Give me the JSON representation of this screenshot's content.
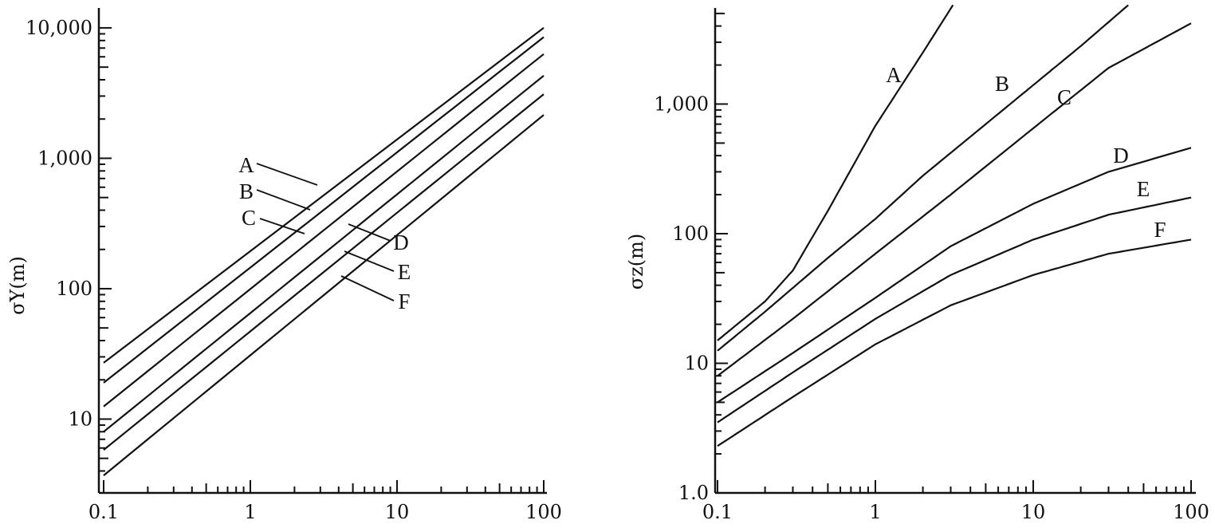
{
  "chart_data": [
    {
      "type": "line",
      "title": "",
      "xlabel": "",
      "ylabel": "σY(m)",
      "x_scale": "log",
      "y_scale": "log",
      "xlim": [
        0.1,
        100
      ],
      "ylim": [
        3.5,
        12000
      ],
      "x_ticks": [
        0.1,
        1,
        10,
        100
      ],
      "x_tick_labels": [
        "0.1",
        "1",
        "10",
        "100"
      ],
      "y_ticks": [
        10,
        100,
        1000,
        10000
      ],
      "y_tick_labels": [
        "10",
        "100",
        "1,000",
        "10,000"
      ],
      "grid": false,
      "series": [
        {
          "name": "A",
          "points": [
            [
              0.1,
              27
            ],
            [
              100,
              10000
            ]
          ]
        },
        {
          "name": "B",
          "points": [
            [
              0.1,
              19
            ],
            [
              100,
              8500
            ]
          ]
        },
        {
          "name": "C",
          "points": [
            [
              0.1,
              12.5
            ],
            [
              100,
              6300
            ]
          ]
        },
        {
          "name": "D",
          "points": [
            [
              0.1,
              8
            ],
            [
              100,
              4300
            ]
          ]
        },
        {
          "name": "E",
          "points": [
            [
              0.1,
              5.8
            ],
            [
              100,
              3100
            ]
          ]
        },
        {
          "name": "F",
          "points": [
            [
              0.1,
              3.7
            ],
            [
              100,
              2150
            ]
          ]
        }
      ]
    },
    {
      "type": "line",
      "title": "",
      "xlabel": "",
      "ylabel": "σz(m)",
      "x_scale": "log",
      "y_scale": "log",
      "xlim": [
        0.1,
        100
      ],
      "ylim": [
        1,
        6000
      ],
      "x_ticks": [
        0.1,
        1,
        10,
        100
      ],
      "x_tick_labels": [
        "0.1",
        "1",
        "10",
        "100"
      ],
      "y_ticks": [
        1,
        10,
        100,
        1000
      ],
      "y_tick_labels": [
        "1.0",
        "10",
        "100",
        "1,000"
      ],
      "grid": false,
      "series": [
        {
          "name": "A",
          "points": [
            [
              0.1,
              15
            ],
            [
              0.2,
              30
            ],
            [
              0.3,
              52
            ],
            [
              0.5,
              150
            ],
            [
              1,
              680
            ],
            [
              2,
              2500
            ],
            [
              3.1,
              5800
            ]
          ]
        },
        {
          "name": "B",
          "points": [
            [
              0.1,
              12.5
            ],
            [
              0.2,
              25
            ],
            [
              0.5,
              65
            ],
            [
              1,
              130
            ],
            [
              2,
              280
            ],
            [
              5,
              700
            ],
            [
              10,
              1400
            ],
            [
              20,
              2800
            ],
            [
              40,
              5800
            ]
          ]
        },
        {
          "name": "C",
          "points": [
            [
              0.1,
              8
            ],
            [
              0.3,
              22
            ],
            [
              1,
              70
            ],
            [
              3,
              200
            ],
            [
              10,
              650
            ],
            [
              30,
              1900
            ],
            [
              100,
              4200
            ]
          ]
        },
        {
          "name": "D",
          "points": [
            [
              0.1,
              5
            ],
            [
              0.3,
              12
            ],
            [
              1,
              32
            ],
            [
              3,
              80
            ],
            [
              10,
              170
            ],
            [
              30,
              300
            ],
            [
              100,
              460
            ]
          ]
        },
        {
          "name": "E",
          "points": [
            [
              0.1,
              3.5
            ],
            [
              0.3,
              8.5
            ],
            [
              1,
              22
            ],
            [
              3,
              48
            ],
            [
              10,
              90
            ],
            [
              30,
              140
            ],
            [
              100,
              190
            ]
          ]
        },
        {
          "name": "F",
          "points": [
            [
              0.1,
              2.3
            ],
            [
              0.3,
              5.5
            ],
            [
              1,
              14
            ],
            [
              3,
              28
            ],
            [
              10,
              48
            ],
            [
              30,
              70
            ],
            [
              100,
              90
            ]
          ]
        }
      ]
    }
  ]
}
